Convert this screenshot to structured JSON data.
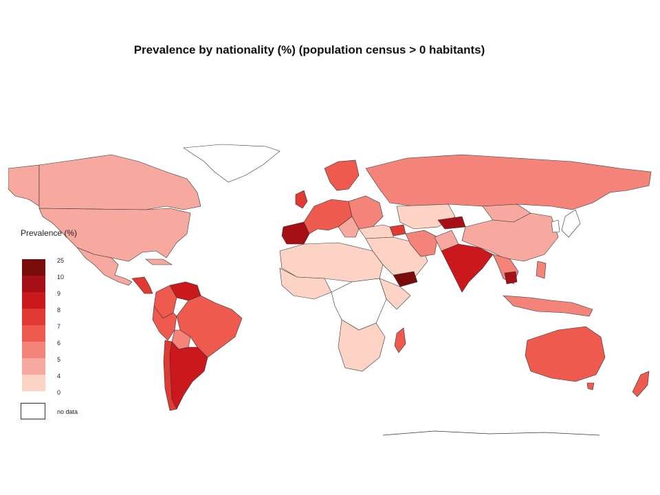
{
  "title": "Prevalence by nationality (%) (population census > 0 habitants)",
  "legend": {
    "title": "Prevalence (%)",
    "no_data_label": "no data",
    "classes": [
      {
        "tick": "25",
        "color": "#7a0c0c"
      },
      {
        "tick": "10",
        "color": "#a50f15"
      },
      {
        "tick": "9",
        "color": "#cb181d"
      },
      {
        "tick": "8",
        "color": "#e03a32"
      },
      {
        "tick": "7",
        "color": "#ef5a4f"
      },
      {
        "tick": "6",
        "color": "#f4837a"
      },
      {
        "tick": "5",
        "color": "#f7a99f"
      },
      {
        "tick": "4",
        "color": "#fcd3c4"
      },
      {
        "tick": "0",
        "color": "#ffffff"
      }
    ]
  },
  "colors": {
    "border": "#333333",
    "no_data": "#ffffff",
    "background": "#ffffff"
  }
}
